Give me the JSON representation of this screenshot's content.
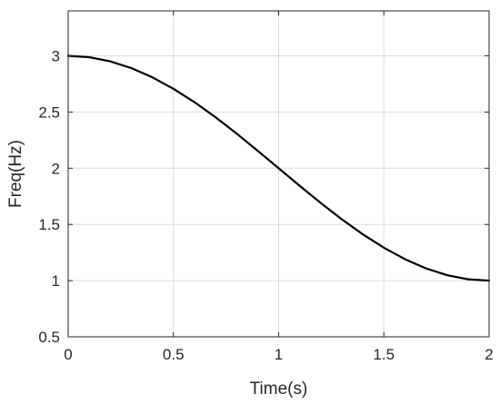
{
  "chart_data": {
    "type": "line",
    "title": "",
    "xlabel": "Time(s)",
    "ylabel": "Freq(Hz)",
    "xlim": [
      0,
      2
    ],
    "ylim": [
      0.5,
      3.4
    ],
    "xticks": [
      0,
      0.5,
      1,
      1.5,
      2
    ],
    "xtick_labels": [
      "0",
      "0.5",
      "1",
      "1.5",
      "2"
    ],
    "yticks": [
      0.5,
      1,
      1.5,
      2,
      2.5,
      3
    ],
    "ytick_labels": [
      "0.5",
      "1",
      "1.5",
      "2",
      "2.5",
      "3"
    ],
    "grid": true,
    "legend": "none",
    "series": [
      {
        "color": "#000000",
        "x": [
          0,
          0.1,
          0.2,
          0.3,
          0.4,
          0.5,
          0.6,
          0.7,
          0.8,
          0.9,
          1.0,
          1.1,
          1.2,
          1.3,
          1.4,
          1.5,
          1.6,
          1.7,
          1.8,
          1.9,
          2.0
        ],
        "y": [
          3.0,
          2.988,
          2.951,
          2.891,
          2.809,
          2.707,
          2.588,
          2.454,
          2.309,
          2.156,
          2.0,
          1.844,
          1.691,
          1.546,
          1.412,
          1.293,
          1.191,
          1.109,
          1.049,
          1.012,
          1.0
        ]
      }
    ]
  }
}
